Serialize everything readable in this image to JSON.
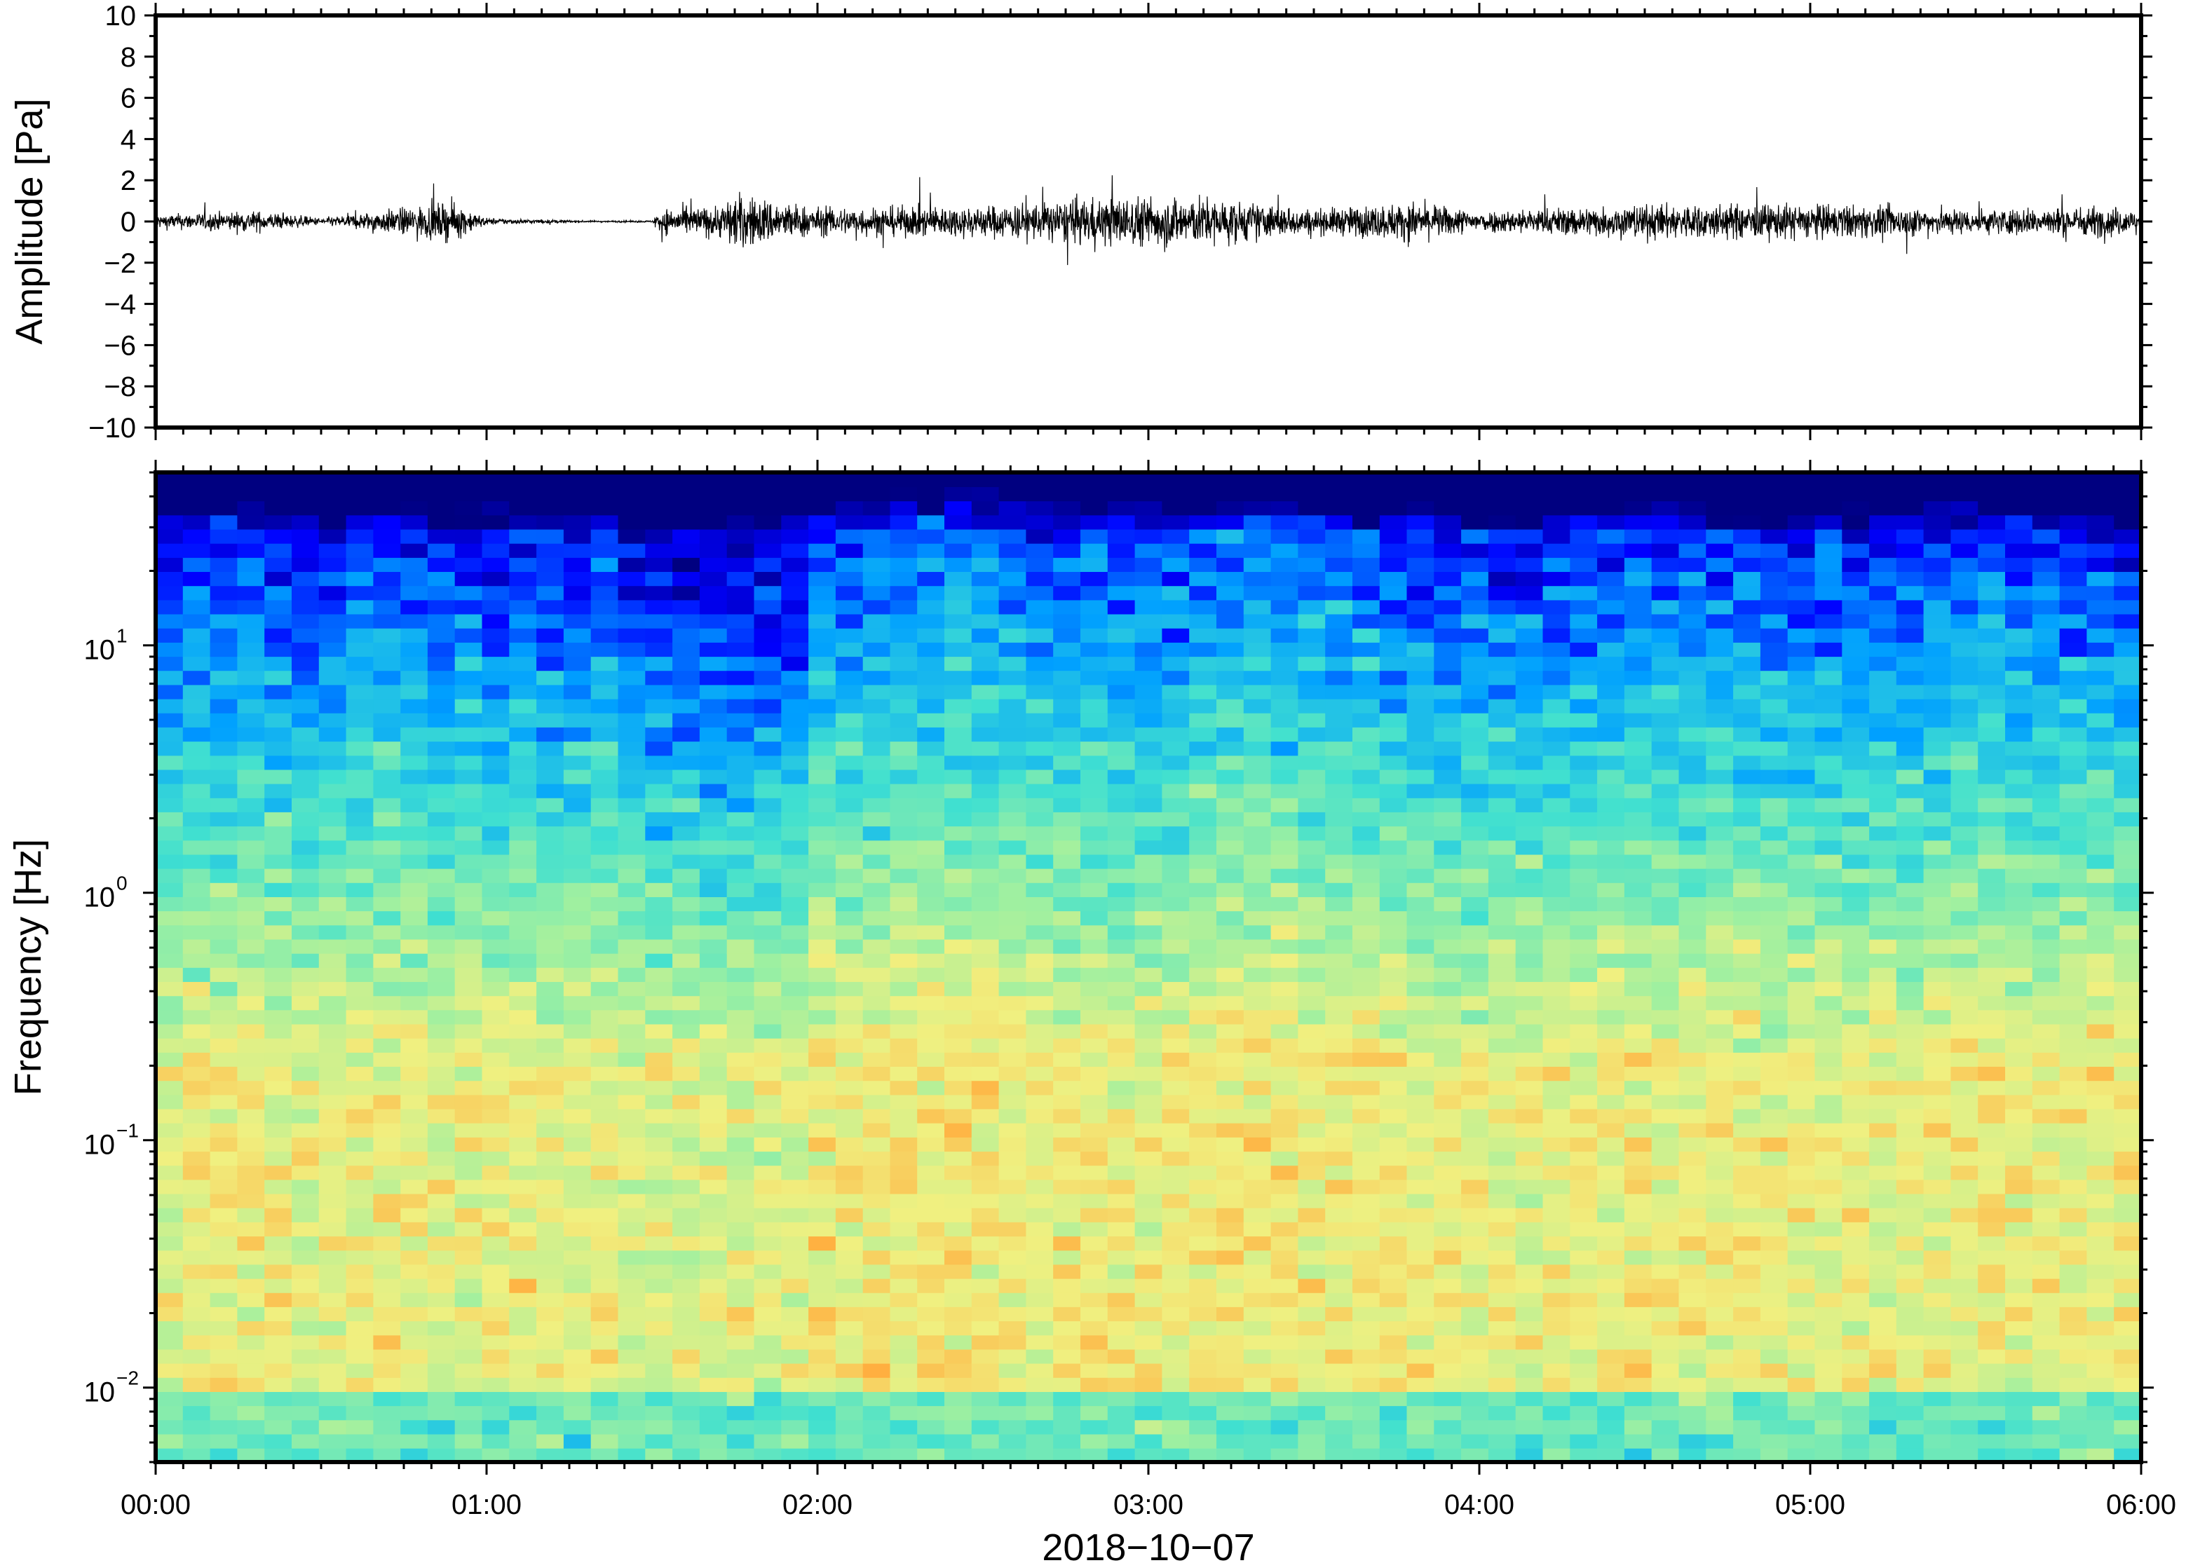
{
  "chart_data": [
    {
      "type": "line",
      "panel": "waveform",
      "xlabel": "2018−10−07",
      "ylabel": "Amplitude [Pa]",
      "xlim": [
        "00:00",
        "06:00"
      ],
      "ylim": [
        -10,
        10
      ],
      "x_ticks": [
        "00:00",
        "01:00",
        "02:00",
        "03:00",
        "04:00",
        "05:00",
        "06:00"
      ],
      "y_ticks": [
        "10",
        "8",
        "6",
        "4",
        "2",
        "0",
        "−2",
        "−4",
        "−6",
        "−8",
        "−10"
      ],
      "series": [
        {
          "envelope_time_hours": [
            0.0,
            0.3,
            0.5,
            0.8,
            0.9,
            1.0,
            1.3,
            1.5,
            1.52,
            1.7,
            1.75,
            2.0,
            2.5,
            2.9,
            3.1,
            3.5,
            3.8,
            4.0,
            4.5,
            5.0,
            5.5,
            5.9,
            6.0
          ],
          "envelope_peak_pa": [
            0.4,
            0.6,
            0.2,
            0.9,
            1.1,
            0.2,
            0.05,
            0.05,
            0.7,
            0.9,
            1.6,
            0.8,
            0.9,
            1.4,
            1.5,
            0.7,
            1.1,
            0.6,
            1.0,
            1.0,
            0.7,
            0.9,
            0.6
          ]
        }
      ]
    },
    {
      "type": "heatmap",
      "panel": "spectrogram",
      "xlabel": "2018−10−07",
      "ylabel": "Frequency [Hz]",
      "xlim": [
        "00:00",
        "06:00"
      ],
      "ylim": [
        0.005,
        50
      ],
      "yscale": "log",
      "x_ticks": [
        "00:00",
        "01:00",
        "02:00",
        "03:00",
        "04:00",
        "05:00",
        "06:00"
      ],
      "y_ticks": [
        {
          "base": "10",
          "exp": "1"
        },
        {
          "base": "10",
          "exp": "0"
        },
        {
          "base": "10",
          "exp": "−1"
        },
        {
          "base": "10",
          "exp": "−2"
        }
      ],
      "colormap": [
        "#000080",
        "#0000ff",
        "#00a0ff",
        "#40e0d0",
        "#a0f0a0",
        "#f0f080",
        "#ffb040",
        "#f04040"
      ],
      "time_bins": 73,
      "column_activity": [
        0.45,
        0.55,
        0.55,
        0.6,
        0.55,
        0.45,
        0.5,
        0.6,
        0.6,
        0.55,
        0.5,
        0.55,
        0.5,
        0.55,
        0.5,
        0.5,
        0.55,
        0.4,
        0.35,
        0.35,
        0.3,
        0.3,
        0.35,
        0.4,
        0.65,
        0.7,
        0.7,
        0.75,
        0.75,
        0.8,
        0.75,
        0.7,
        0.65,
        0.65,
        0.65,
        0.65,
        0.6,
        0.65,
        0.65,
        0.7,
        0.75,
        0.75,
        0.7,
        0.65,
        0.7,
        0.6,
        0.55,
        0.55,
        0.55,
        0.5,
        0.5,
        0.55,
        0.6,
        0.6,
        0.65,
        0.6,
        0.6,
        0.6,
        0.6,
        0.55,
        0.55,
        0.55,
        0.55,
        0.55,
        0.5,
        0.6,
        0.65,
        0.65,
        0.6,
        0.6,
        0.6,
        0.6,
        0.6
      ]
    }
  ]
}
